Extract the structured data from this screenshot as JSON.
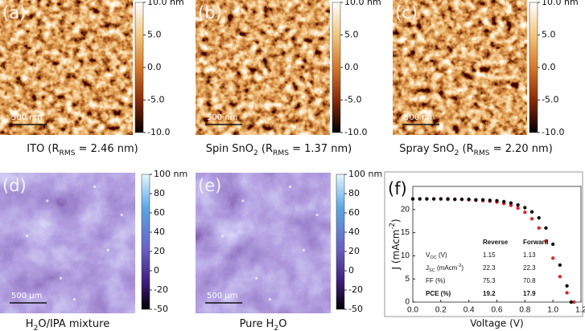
{
  "panels": [
    {
      "label": "(a)",
      "scale_bar": "500 nm",
      "colorbar": [
        "10.0 nm",
        "5.0",
        "0.0",
        "-5.0",
        "-10.0"
      ],
      "caption": [
        {
          "text": "ITO (R"
        },
        {
          "text": "RMS",
          "sub": true
        },
        {
          "text": " = 2.46 nm)"
        }
      ]
    },
    {
      "label": "(b)",
      "scale_bar": "500 nm",
      "colorbar": [
        "10.0 nm",
        "5.0",
        "0.0",
        "-5.0",
        "-10.0"
      ],
      "caption": [
        {
          "text": "Spin SnO"
        },
        {
          "text": "2",
          "sub": true
        },
        {
          "text": " (R"
        },
        {
          "text": "RMS",
          "sub": true
        },
        {
          "text": " = 1.37 nm)"
        }
      ]
    },
    {
      "label": "(c)",
      "scale_bar": "500 nm",
      "colorbar": [
        "10.0 nm",
        "5.0",
        "0.0",
        "-5.0",
        "-10.0"
      ],
      "caption": [
        {
          "text": "Spray SnO"
        },
        {
          "text": "2",
          "sub": true
        },
        {
          "text": " (R"
        },
        {
          "text": "RMS",
          "sub": true
        },
        {
          "text": " = 2.20 nm)"
        }
      ]
    },
    {
      "label": "(d)",
      "scale_bar": "500 μm",
      "colorbar": [
        "100 nm",
        "80",
        "60",
        "40",
        "20",
        "0",
        "-20",
        "-50"
      ],
      "caption": [
        {
          "text": "H"
        },
        {
          "text": "2",
          "sub": true
        },
        {
          "text": "O/IPA mixture"
        }
      ]
    },
    {
      "label": "(e)",
      "scale_bar": "500 μm",
      "colorbar": [
        "100 nm",
        "80",
        "60",
        "40",
        "20",
        "0",
        "-20",
        "-50"
      ],
      "caption": [
        {
          "text": "Pure H"
        },
        {
          "text": "2",
          "sub": true
        },
        {
          "text": "O"
        }
      ]
    }
  ],
  "chart_data": {
    "type": "scatter",
    "panel_label": "(f)",
    "x_label": "Voltage (V)",
    "y_label": [
      {
        "text": "J (mAcm"
      },
      {
        "text": "-2",
        "sup": true
      },
      {
        "text": ")"
      }
    ],
    "xlim": [
      0,
      1.2
    ],
    "xticks": [
      {
        "value": 0,
        "label": "0.0"
      },
      0.2,
      0.4,
      0.6,
      0.8,
      {
        "value": 1,
        "label": "1.0"
      },
      1.2
    ],
    "ylim": [
      0,
      25
    ],
    "yticks": [
      0,
      5,
      10,
      15,
      20
    ],
    "series": [
      {
        "name": "Reverse",
        "color": "#e3262b",
        "x": [
          0,
          0.05,
          0.1,
          0.15,
          0.2,
          0.25,
          0.3,
          0.35,
          0.4,
          0.45,
          0.5,
          0.55,
          0.6,
          0.65,
          0.7,
          0.75,
          0.8,
          0.85,
          0.9,
          0.95,
          1.0,
          1.05,
          1.1,
          1.15
        ],
        "values": [
          22.3,
          22.3,
          22.3,
          22.3,
          22.3,
          22.2,
          22.2,
          22.2,
          22.1,
          22.0,
          21.9,
          21.8,
          21.6,
          21.3,
          20.9,
          20.3,
          19.4,
          18.0,
          16.0,
          13.2,
          9.5,
          5.5,
          2.0,
          0
        ]
      },
      {
        "name": "Forward",
        "color": "#111111",
        "x": [
          0,
          0.05,
          0.1,
          0.15,
          0.2,
          0.25,
          0.3,
          0.35,
          0.4,
          0.45,
          0.5,
          0.55,
          0.6,
          0.65,
          0.7,
          0.75,
          0.8,
          0.85,
          0.9,
          0.95,
          1.0,
          1.05,
          1.1,
          1.13
        ],
        "values": [
          22.3,
          22.3,
          22.3,
          22.3,
          22.3,
          22.3,
          22.2,
          22.2,
          22.2,
          22.1,
          22.1,
          22.0,
          21.9,
          21.7,
          21.4,
          21.0,
          20.4,
          19.5,
          18.2,
          16.0,
          12.5,
          8.0,
          3.5,
          0
        ]
      }
    ],
    "table": {
      "rows": [
        {
          "label": [
            {
              "text": "V"
            },
            {
              "text": "OC",
              "sub": true
            },
            {
              "text": " (V)"
            }
          ],
          "values": [
            1.15,
            1.13
          ]
        },
        {
          "label": [
            {
              "text": "J"
            },
            {
              "text": "SC",
              "sub": true
            },
            {
              "text": " (mAcm"
            },
            {
              "text": "-2",
              "sup": true
            },
            {
              "text": ")"
            }
          ],
          "values": [
            22.3,
            22.3
          ]
        },
        {
          "label": [
            {
              "text": "FF (%)"
            }
          ],
          "values": [
            75.3,
            70.8
          ]
        },
        {
          "label": [
            {
              "text": "PCE (%)"
            }
          ],
          "values": [
            19.2,
            17.9
          ],
          "bold": true
        }
      ]
    }
  }
}
